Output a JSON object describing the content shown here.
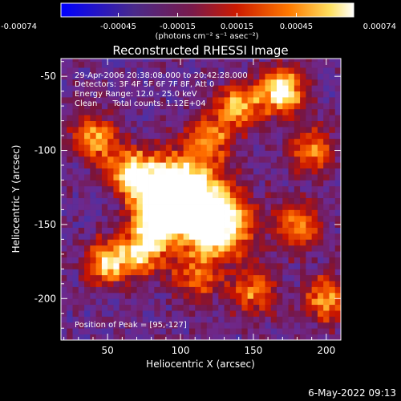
{
  "chart_data": {
    "type": "heatmap",
    "title": "Reconstructed RHESSI Image",
    "xlabel": "Heliocentric X (arcsec)",
    "ylabel": "Heliocentric Y (arcsec)",
    "xlim": [
      18,
      210
    ],
    "ylim": [
      -228,
      -38
    ],
    "xticks": [
      50,
      100,
      150,
      200
    ],
    "yticks": [
      -50,
      -100,
      -150,
      -200
    ],
    "colorbar": {
      "ticks": [
        "-0.00074",
        "-0.00045",
        "-0.00015",
        "0.00015",
        "0.00045",
        "0.00074"
      ],
      "range": [
        -0.00074,
        0.00074
      ],
      "unit_label": "(photons cm⁻² s⁻¹ asec⁻²)"
    },
    "annotations": [
      "29-Apr-2006 20:38:08.000 to 20:42:28.000",
      "Detectors: 3F 4F 5F 6F 7F 8F, Att 0",
      "Energy Range: 12.0 - 25.0 keV",
      "Clean      Total counts: 1.12E+04"
    ],
    "peak_label": "Position of Peak = [95,-127]",
    "peak": [
      95,
      -127
    ],
    "grid": false,
    "intensity_hotspots": [
      {
        "x": 97,
        "y": -126,
        "value": 1.0
      },
      {
        "x": 124,
        "y": -148,
        "value": 0.95
      },
      {
        "x": 84,
        "y": -145,
        "value": 0.75
      },
      {
        "x": 66,
        "y": -115,
        "value": 0.6
      },
      {
        "x": 170,
        "y": -60,
        "value": 0.7
      },
      {
        "x": 140,
        "y": -70,
        "value": 0.55
      },
      {
        "x": 120,
        "y": -92,
        "value": 0.45
      },
      {
        "x": 42,
        "y": -92,
        "value": 0.5
      },
      {
        "x": 50,
        "y": -175,
        "value": 0.6
      },
      {
        "x": 75,
        "y": -168,
        "value": 0.55
      },
      {
        "x": 180,
        "y": -150,
        "value": 0.5
      },
      {
        "x": 150,
        "y": -195,
        "value": 0.45
      },
      {
        "x": 110,
        "y": -185,
        "value": 0.4
      },
      {
        "x": 200,
        "y": -200,
        "value": 0.5
      },
      {
        "x": 190,
        "y": -100,
        "value": 0.45
      }
    ]
  },
  "footer": {
    "date": "6-May-2022 09:13"
  }
}
